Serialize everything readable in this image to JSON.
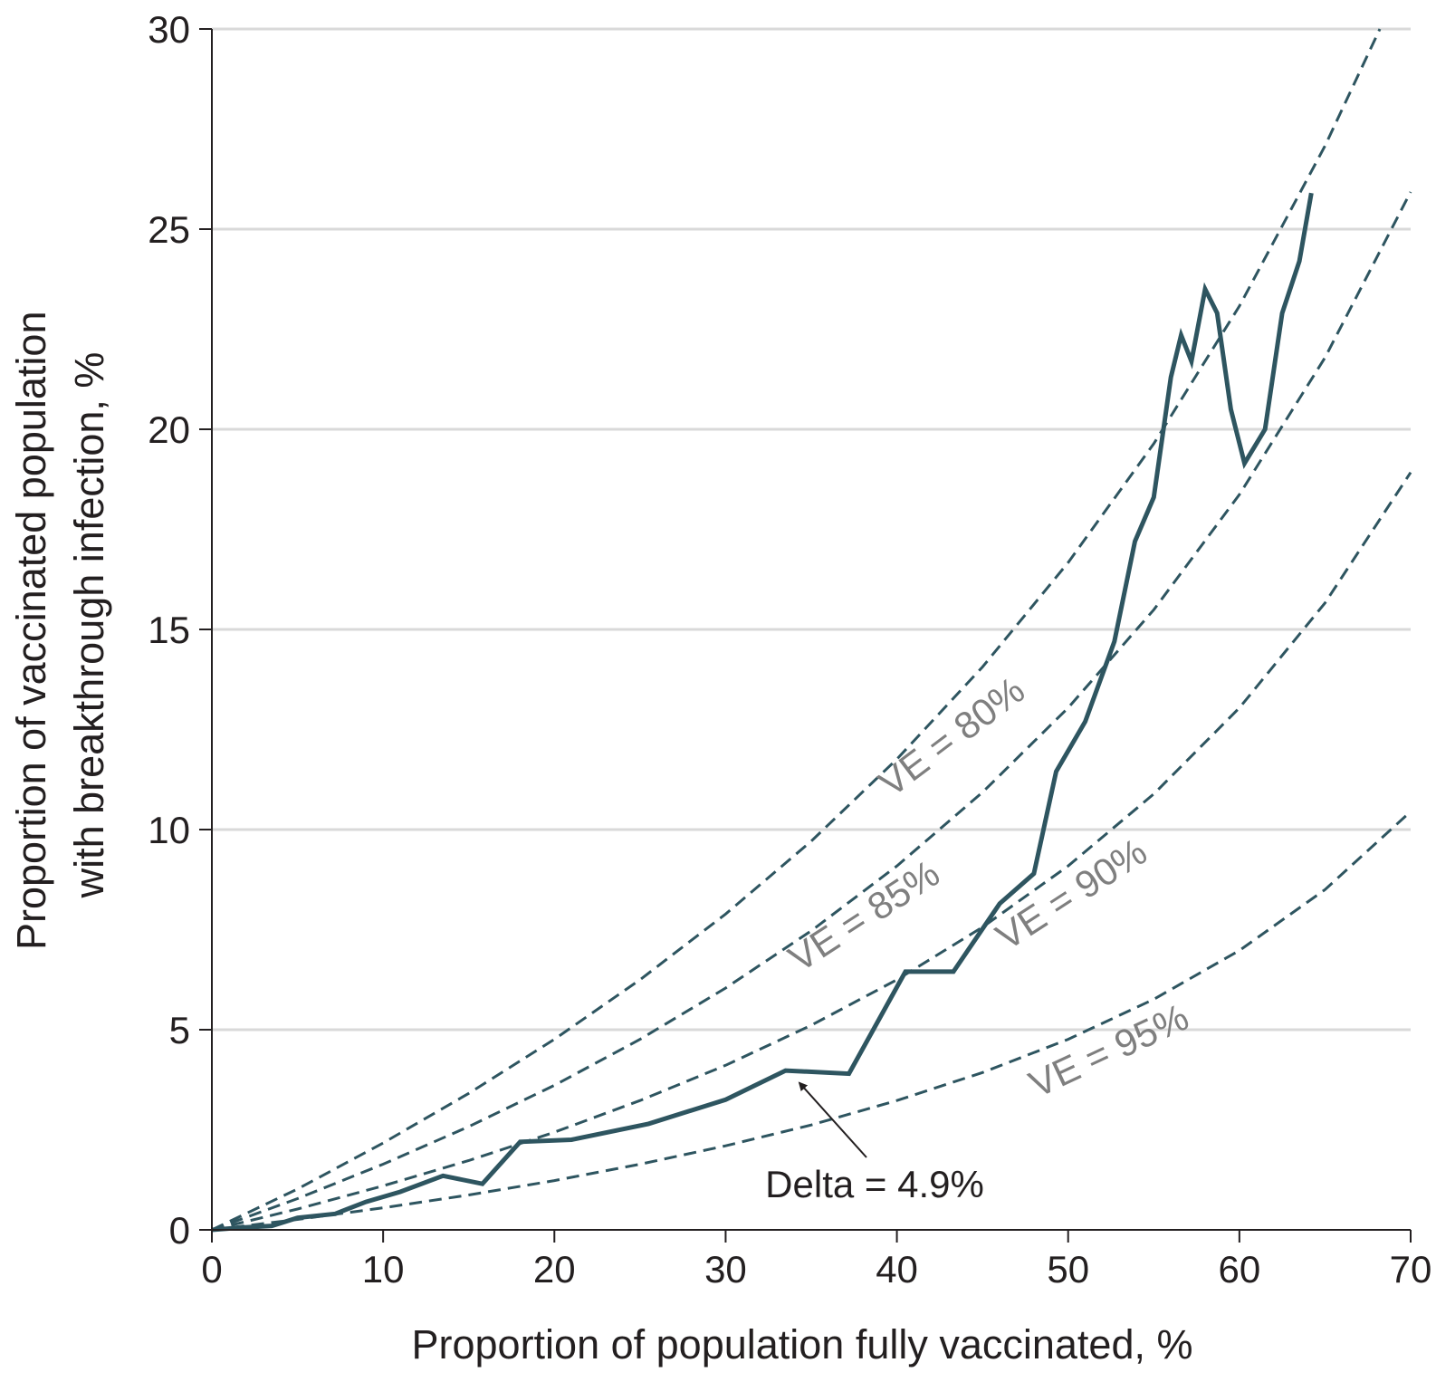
{
  "chart_data": {
    "type": "line",
    "title": "",
    "xlabel": "Proportion of population fully vaccinated, %",
    "ylabel_lines": [
      "Proportion of vaccinated population",
      "with breakthrough infection, %"
    ],
    "xlim": [
      0,
      70
    ],
    "ylim": [
      0,
      30
    ],
    "x_ticks": [
      0,
      10,
      20,
      30,
      40,
      50,
      60,
      70
    ],
    "y_ticks": [
      0,
      5,
      10,
      15,
      20,
      25,
      30
    ],
    "grid": "horizontal",
    "colors": {
      "observed": "#2e5560",
      "reference": "#2e5560",
      "grid": "#d9d9d9",
      "axis": "#231f20",
      "curve_label": "#7f7f7f"
    },
    "reference_curves": [
      {
        "label": "VE = 80%",
        "x": [
          0,
          5,
          10,
          15,
          20,
          25,
          30,
          35,
          40,
          45,
          50,
          55,
          60,
          65,
          68.2
        ],
        "y": [
          0,
          1.02,
          2.17,
          3.41,
          4.76,
          6.25,
          7.89,
          9.71,
          11.76,
          14.06,
          16.67,
          19.64,
          23.08,
          27.08,
          30.0
        ]
      },
      {
        "label": "VE = 85%",
        "x": [
          0,
          5,
          10,
          15,
          20,
          25,
          30,
          35,
          40,
          45,
          50,
          55,
          60,
          65,
          70
        ],
        "y": [
          0,
          0.78,
          1.64,
          2.58,
          3.61,
          4.76,
          6.04,
          7.47,
          9.09,
          10.93,
          13.04,
          15.49,
          18.37,
          21.79,
          25.93
        ]
      },
      {
        "label": "VE = 90%",
        "x": [
          0,
          5,
          10,
          15,
          20,
          25,
          30,
          35,
          40,
          45,
          50,
          55,
          60,
          65,
          70
        ],
        "y": [
          0,
          0.52,
          1.1,
          1.73,
          2.44,
          3.23,
          4.11,
          5.11,
          6.25,
          7.56,
          9.09,
          10.89,
          13.04,
          15.66,
          18.92
        ]
      },
      {
        "label": "VE = 95%",
        "x": [
          0,
          5,
          10,
          15,
          20,
          25,
          30,
          35,
          40,
          45,
          50,
          55,
          60,
          65,
          70
        ],
        "y": [
          0,
          0.26,
          0.55,
          0.87,
          1.23,
          1.64,
          2.1,
          2.62,
          3.23,
          3.93,
          4.76,
          5.76,
          6.98,
          8.5,
          10.45
        ]
      }
    ],
    "series": [
      {
        "x": [
          0,
          1.5,
          3.5,
          5.0,
          7.2,
          9.0,
          11.0,
          13.5,
          15.8,
          18.0,
          21.0,
          25.5,
          30.0,
          33.5,
          37.2,
          40.5,
          43.3,
          46.0,
          48.0,
          49.3,
          51.0,
          52.7,
          53.9,
          55.0,
          56.0,
          56.6,
          57.2,
          58.0,
          58.7,
          59.5,
          60.3,
          61.5,
          62.5,
          63.5,
          64.2
        ],
        "y": [
          0,
          0.05,
          0.1,
          0.3,
          0.4,
          0.7,
          0.95,
          1.35,
          1.15,
          2.2,
          2.25,
          2.65,
          3.25,
          3.98,
          3.9,
          6.45,
          6.45,
          8.15,
          8.9,
          11.45,
          12.7,
          14.7,
          17.2,
          18.3,
          21.3,
          22.35,
          21.7,
          23.5,
          22.9,
          20.5,
          19.15,
          20.0,
          22.9,
          24.2,
          25.9
        ]
      }
    ],
    "annotation": {
      "text": "Delta = 4.9%",
      "points_to": [
        34,
        3.85
      ]
    }
  }
}
